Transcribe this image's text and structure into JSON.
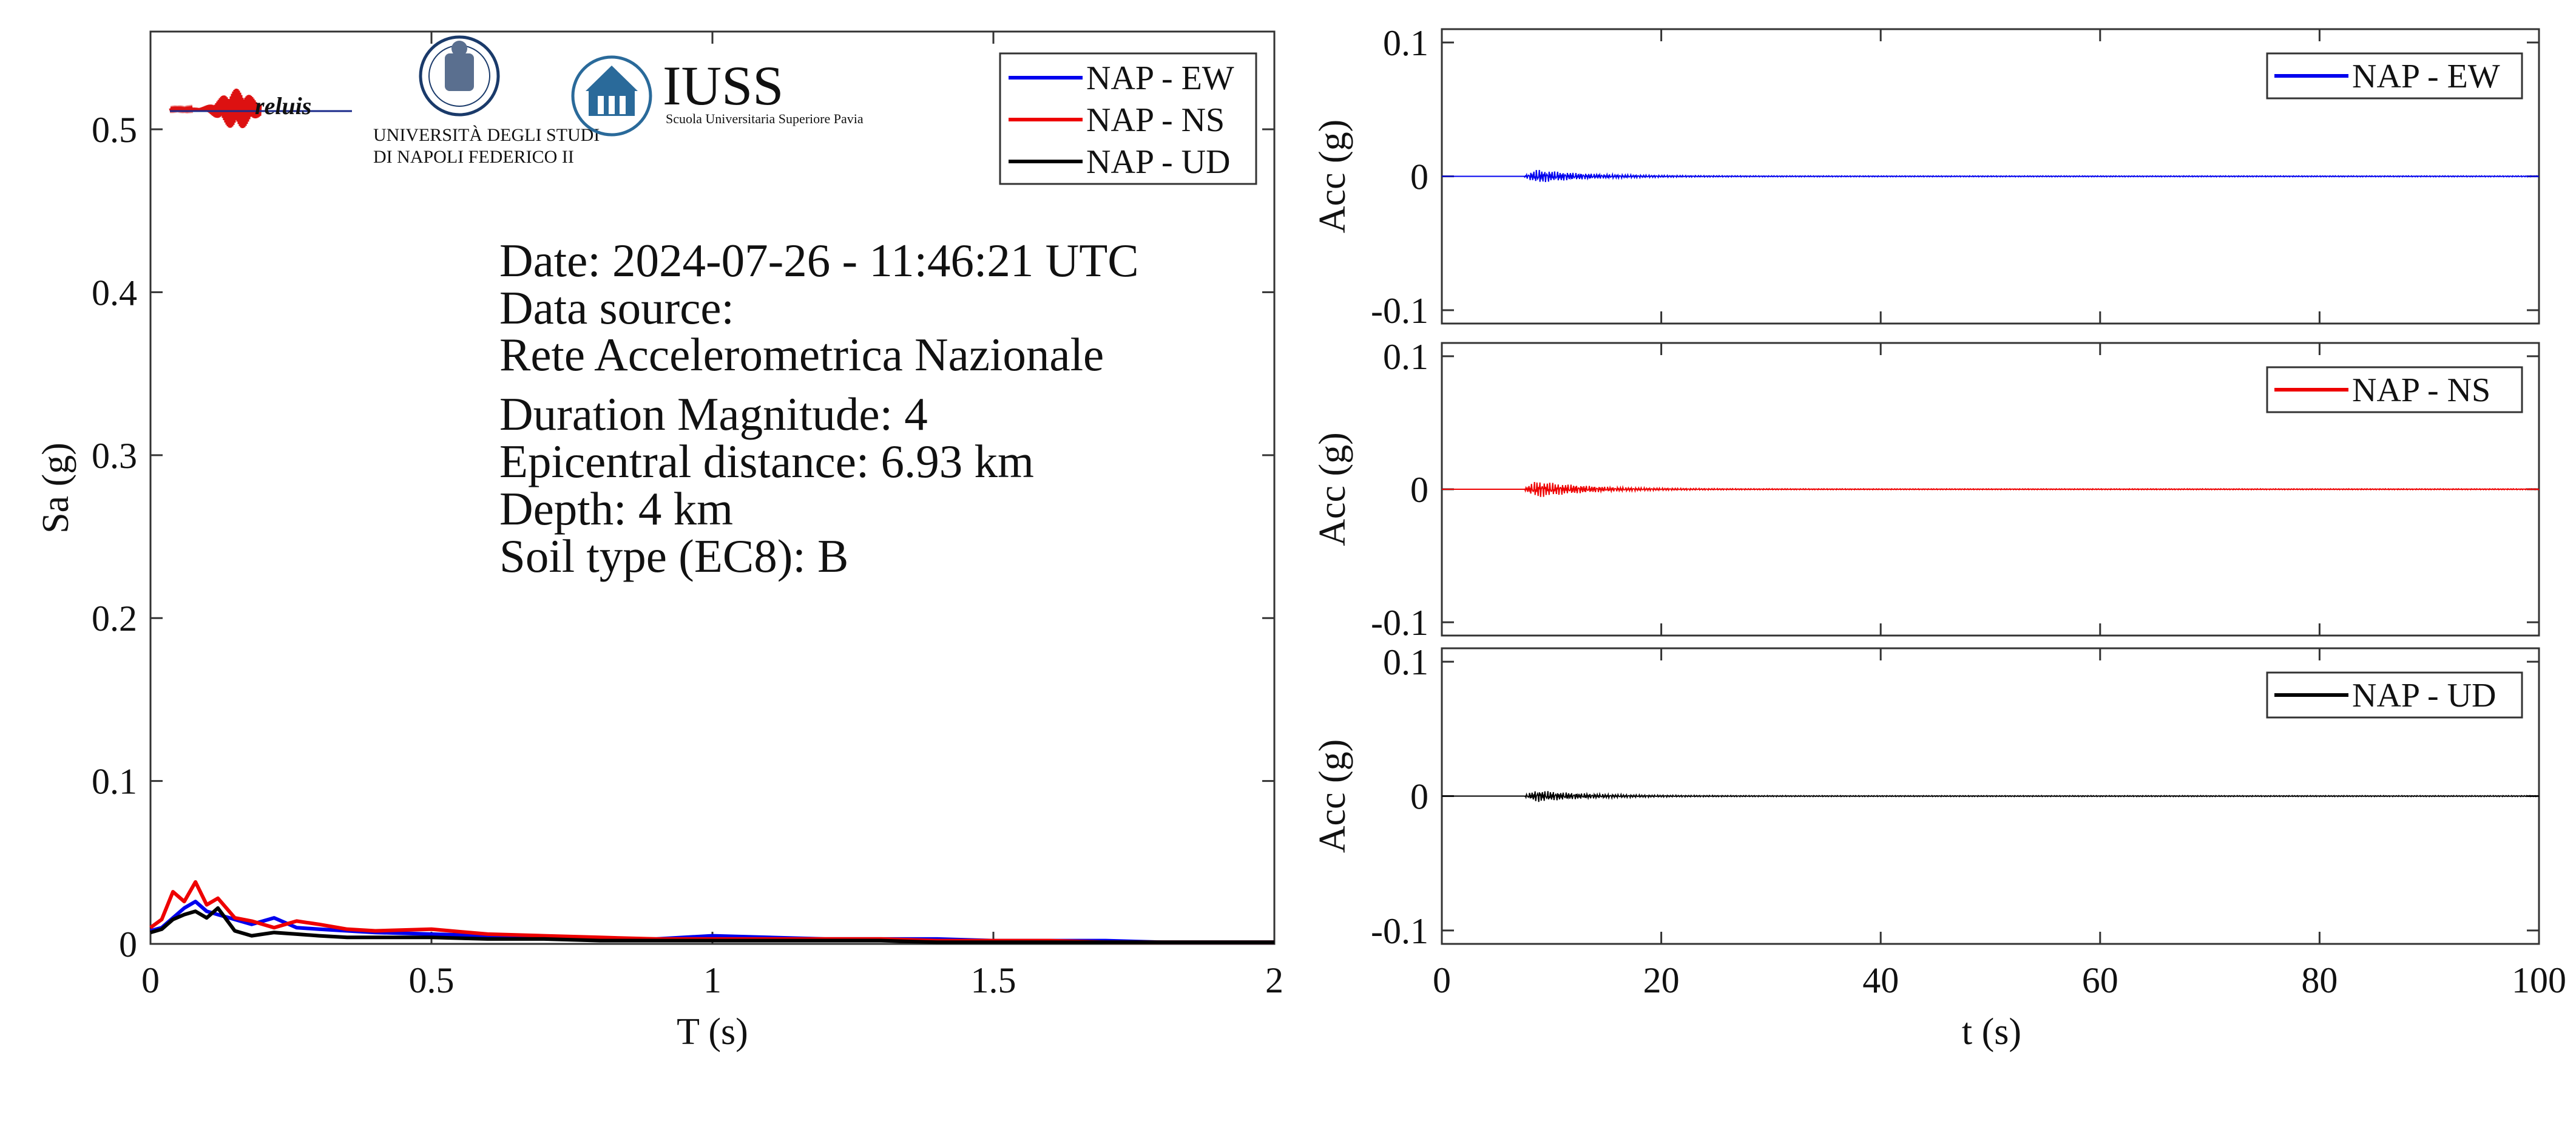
{
  "info": {
    "date": "Date: 2024-07-26 - 11:46:21 UTC",
    "source_label": "Data source:",
    "source_name": "Rete Accelerometrica Nazionale",
    "magnitude": "Duration Magnitude: 4",
    "distance": "Epicentral distance: 6.93 km",
    "depth": "Depth: 4 km",
    "soil": "Soil type (EC8): B"
  },
  "logos": {
    "reluis": "reluis",
    "unina_line1": "UNIVERSITÀ DEGLI STUDI",
    "unina_line2": "DI NAPOLI FEDERICO II",
    "iuss": "IUSS",
    "iuss_sub": "Scuola Universitaria Superiore Pavia"
  },
  "colors": {
    "ew": "#0000ee",
    "ns": "#ee0000",
    "ud": "#000000",
    "axis": "#333333"
  },
  "chart_data": [
    {
      "type": "line",
      "xlabel": "T (s)",
      "ylabel": "Sa (g)",
      "xlim": [
        0,
        2
      ],
      "ylim": [
        0,
        0.56
      ],
      "xticks": [
        0,
        0.5,
        1,
        1.5,
        2
      ],
      "yticks": [
        0,
        0.1,
        0.2,
        0.3,
        0.4,
        0.5
      ],
      "xtick_labels": [
        "0",
        "0.5",
        "1",
        "1.5",
        "2"
      ],
      "ytick_labels": [
        "0",
        "0.1",
        "0.2",
        "0.3",
        "0.4",
        "0.5"
      ],
      "legend": "top-right",
      "series": [
        {
          "name": "NAP - EW",
          "color": "#0000ee",
          "x": [
            0,
            0.02,
            0.04,
            0.06,
            0.08,
            0.1,
            0.12,
            0.15,
            0.18,
            0.22,
            0.26,
            0.3,
            0.35,
            0.4,
            0.5,
            0.6,
            0.7,
            0.8,
            0.9,
            1.0,
            1.1,
            1.2,
            1.3,
            1.4,
            1.5,
            1.6,
            1.7,
            1.8,
            1.9,
            2.0
          ],
          "y": [
            0.008,
            0.01,
            0.016,
            0.022,
            0.026,
            0.02,
            0.018,
            0.015,
            0.012,
            0.016,
            0.01,
            0.009,
            0.008,
            0.007,
            0.006,
            0.005,
            0.004,
            0.003,
            0.003,
            0.005,
            0.004,
            0.003,
            0.003,
            0.003,
            0.002,
            0.002,
            0.002,
            0.001,
            0.001,
            0.001
          ]
        },
        {
          "name": "NAP - NS",
          "color": "#ee0000",
          "x": [
            0,
            0.02,
            0.04,
            0.06,
            0.08,
            0.1,
            0.12,
            0.15,
            0.18,
            0.22,
            0.26,
            0.3,
            0.35,
            0.4,
            0.5,
            0.6,
            0.7,
            0.8,
            0.9,
            1.0,
            1.1,
            1.2,
            1.3,
            1.4,
            1.5,
            1.6,
            1.7,
            1.8,
            1.9,
            2.0
          ],
          "y": [
            0.01,
            0.015,
            0.032,
            0.026,
            0.038,
            0.024,
            0.028,
            0.016,
            0.014,
            0.01,
            0.014,
            0.012,
            0.009,
            0.008,
            0.009,
            0.006,
            0.005,
            0.004,
            0.003,
            0.003,
            0.003,
            0.003,
            0.003,
            0.002,
            0.002,
            0.002,
            0.001,
            0.001,
            0.001,
            0.001
          ]
        },
        {
          "name": "NAP - UD",
          "color": "#000000",
          "x": [
            0,
            0.02,
            0.04,
            0.06,
            0.08,
            0.1,
            0.12,
            0.15,
            0.18,
            0.22,
            0.26,
            0.3,
            0.35,
            0.4,
            0.5,
            0.6,
            0.7,
            0.8,
            0.9,
            1.0,
            1.1,
            1.2,
            1.3,
            1.4,
            1.5,
            1.6,
            1.7,
            1.8,
            1.9,
            2.0
          ],
          "y": [
            0.007,
            0.009,
            0.015,
            0.018,
            0.02,
            0.016,
            0.022,
            0.008,
            0.005,
            0.007,
            0.006,
            0.005,
            0.004,
            0.004,
            0.004,
            0.003,
            0.003,
            0.002,
            0.002,
            0.002,
            0.002,
            0.002,
            0.002,
            0.001,
            0.001,
            0.001,
            0.001,
            0.001,
            0.001,
            0.001
          ]
        }
      ]
    },
    {
      "type": "line",
      "ylabel": "Acc (g)",
      "xlim": [
        0,
        100
      ],
      "ylim": [
        -0.11,
        0.11
      ],
      "yticks": [
        -0.1,
        0,
        0.1
      ],
      "ytick_labels": [
        "-0.1",
        "0",
        "0.1"
      ],
      "legend": "top-right",
      "series": [
        {
          "name": "NAP - EW",
          "color": "#0000ee",
          "peak": 0.007,
          "onset": 7.5,
          "decay": 4.5
        }
      ]
    },
    {
      "type": "line",
      "ylabel": "Acc (g)",
      "xlim": [
        0,
        100
      ],
      "ylim": [
        -0.11,
        0.11
      ],
      "yticks": [
        -0.1,
        0,
        0.1
      ],
      "ytick_labels": [
        "-0.1",
        "0",
        "0.1"
      ],
      "legend": "top-right",
      "series": [
        {
          "name": "NAP - NS",
          "color": "#ee0000",
          "peak": 0.009,
          "onset": 7.5,
          "decay": 4.5
        }
      ]
    },
    {
      "type": "line",
      "ylabel": "Acc (g)",
      "xlabel": "t (s)",
      "xlim": [
        0,
        100
      ],
      "ylim": [
        -0.11,
        0.11
      ],
      "xticks": [
        0,
        20,
        40,
        60,
        80,
        100
      ],
      "xtick_labels": [
        "0",
        "20",
        "40",
        "60",
        "80",
        "100"
      ],
      "yticks": [
        -0.1,
        0,
        0.1
      ],
      "ytick_labels": [
        "-0.1",
        "0",
        "0.1"
      ],
      "legend": "top-right",
      "series": [
        {
          "name": "NAP - UD",
          "color": "#000000",
          "peak": 0.006,
          "onset": 7.5,
          "decay": 4.5
        }
      ]
    }
  ]
}
